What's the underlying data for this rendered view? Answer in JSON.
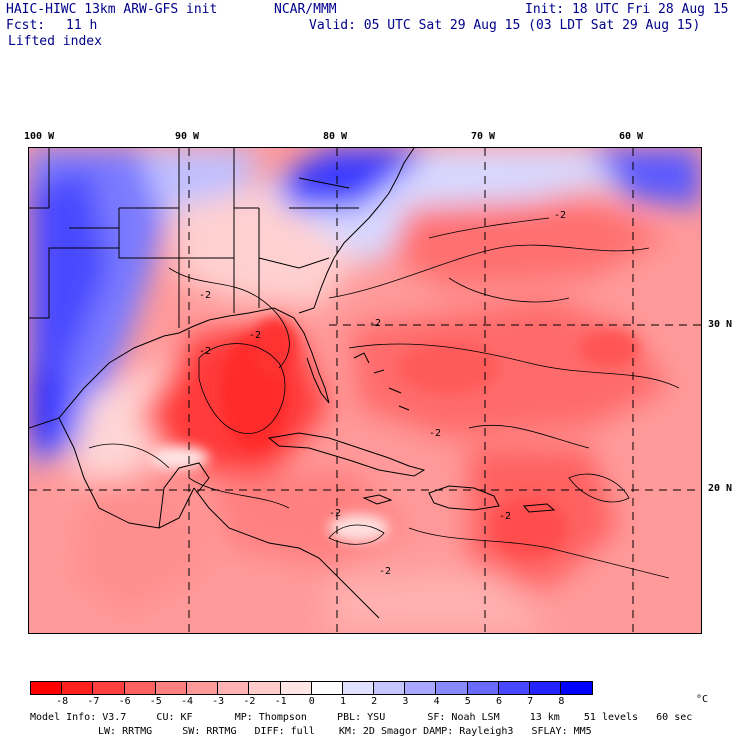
{
  "header": {
    "model": "HAIC-HIWC 13km ARW-GFS init",
    "org": "NCAR/MMM",
    "init": "Init: 18 UTC Fri 28 Aug 15",
    "fcst_label": "Fcst:",
    "fcst_value": "11 h",
    "valid": "Valid: 05 UTC Sat 29 Aug 15 (03 LDT Sat 29 Aug 15)",
    "field": "Lifted index"
  },
  "map": {
    "lon_labels": [
      "100 W",
      "90 W",
      "80 W",
      "70 W",
      "60 W"
    ],
    "lat_labels": [
      "30 N",
      "20 N"
    ],
    "contour_labels": [
      "-2",
      "-2",
      "-2",
      "-2",
      "-2",
      "-2",
      "-2",
      "-2",
      "-2"
    ]
  },
  "colorbar": {
    "ticks": [
      "-8",
      "-7",
      "-6",
      "-5",
      "-4",
      "-3",
      "-2",
      "-1",
      "0",
      "1",
      "2",
      "3",
      "4",
      "5",
      "6",
      "7",
      "8"
    ],
    "unit": "°C",
    "colors": [
      "#ff0000",
      "#ff2020",
      "#ff4040",
      "#ff6060",
      "#ff8080",
      "#ff9a9a",
      "#ffb3b3",
      "#ffcccc",
      "#ffe6e6",
      "#ffffff",
      "#e0e0ff",
      "#c6c6ff",
      "#a8a8ff",
      "#8a8aff",
      "#6a6aff",
      "#4848ff",
      "#2424ff",
      "#0000ff"
    ]
  },
  "model_info": {
    "line1": "Model Info: V3.7     CU: KF       MP: Thompson     PBL: YSU       SF: Noah LSM     13 km    51 levels   60 sec",
    "line2": "LW: RRTMG     SW: RRTMG   DIFF: full    KM: 2D Smagor DAMP: Rayleigh3   SFLAY: MM5"
  }
}
